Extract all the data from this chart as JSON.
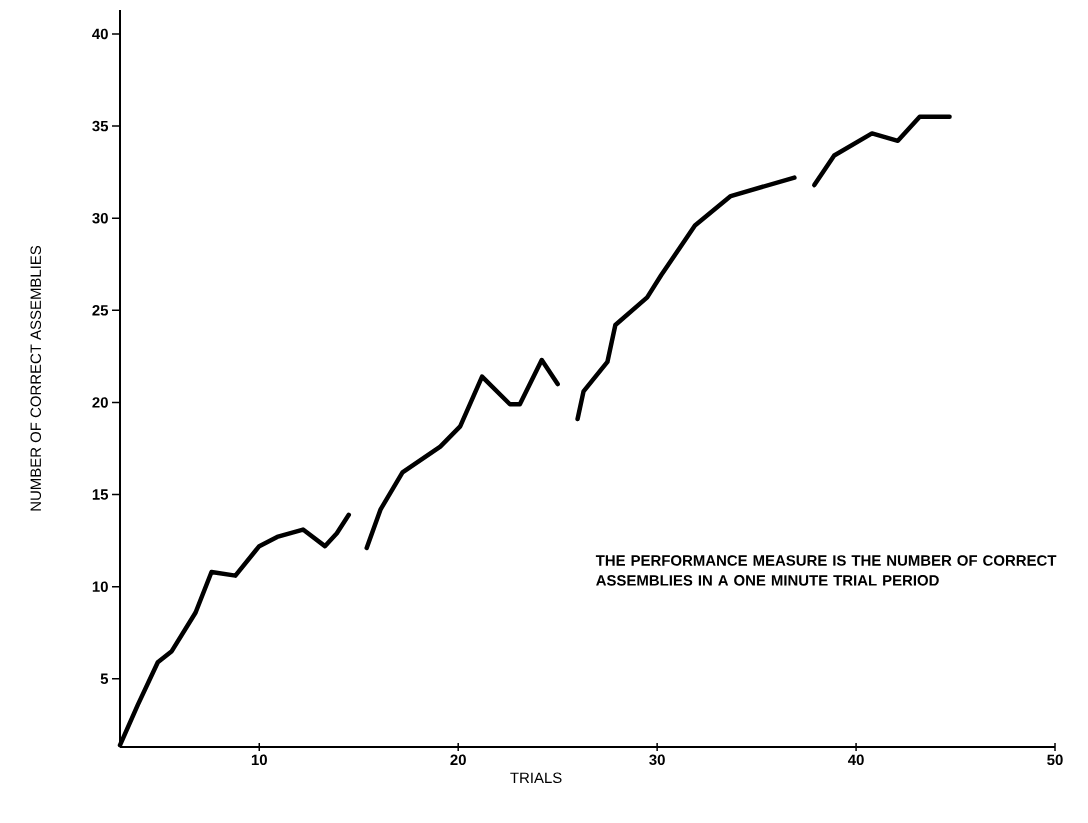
{
  "chart_data": {
    "type": "line",
    "xlabel": "TRIALS",
    "ylabel": "NUMBER OF CORRECT ASSEMBLIES",
    "annotations": [
      "THE PERFORMANCE MEASURE IS THE NUMBER OF CORRECT ASSEMBLIES IN A ONE MINUTE TRIAL PERIOD"
    ],
    "xlim": [
      3,
      50
    ],
    "ylim": [
      1.3,
      41.3
    ],
    "xticks": [
      10,
      20,
      30,
      40,
      50
    ],
    "yticks": [
      5,
      10,
      15,
      20,
      25,
      30,
      35,
      40
    ],
    "grid": false,
    "marker": "none",
    "line_style": "solid",
    "series": [
      {
        "color": "#000000",
        "x": [
          3.0,
          3.9,
          4.9,
          5.6,
          6.8,
          7.6,
          8.8,
          10.0,
          10.9,
          12.2,
          13.3,
          13.9,
          14.5
        ],
        "values": [
          1.4,
          3.6,
          5.9,
          6.5,
          8.6,
          10.8,
          10.6,
          12.2,
          12.7,
          13.1,
          12.2,
          12.9,
          13.9
        ]
      },
      {
        "color": "#000000",
        "x": [
          15.4,
          16.1,
          17.2,
          19.1,
          20.1,
          21.2,
          22.6,
          23.1,
          24.2,
          25.0
        ],
        "values": [
          12.1,
          14.2,
          16.2,
          17.6,
          18.7,
          21.4,
          19.9,
          19.9,
          22.3,
          21.0
        ]
      },
      {
        "color": "#000000",
        "x": [
          26.0,
          26.3,
          27.5,
          27.9,
          29.5,
          30.2,
          31.9,
          33.7,
          36.9
        ],
        "values": [
          19.1,
          20.6,
          22.2,
          24.2,
          25.7,
          26.9,
          29.6,
          31.2,
          32.2
        ]
      },
      {
        "color": "#000000",
        "x": [
          37.9,
          38.9,
          40.8,
          42.1,
          43.2,
          44.7
        ],
        "values": [
          31.8,
          33.4,
          34.6,
          34.2,
          35.5,
          35.5
        ]
      }
    ]
  }
}
